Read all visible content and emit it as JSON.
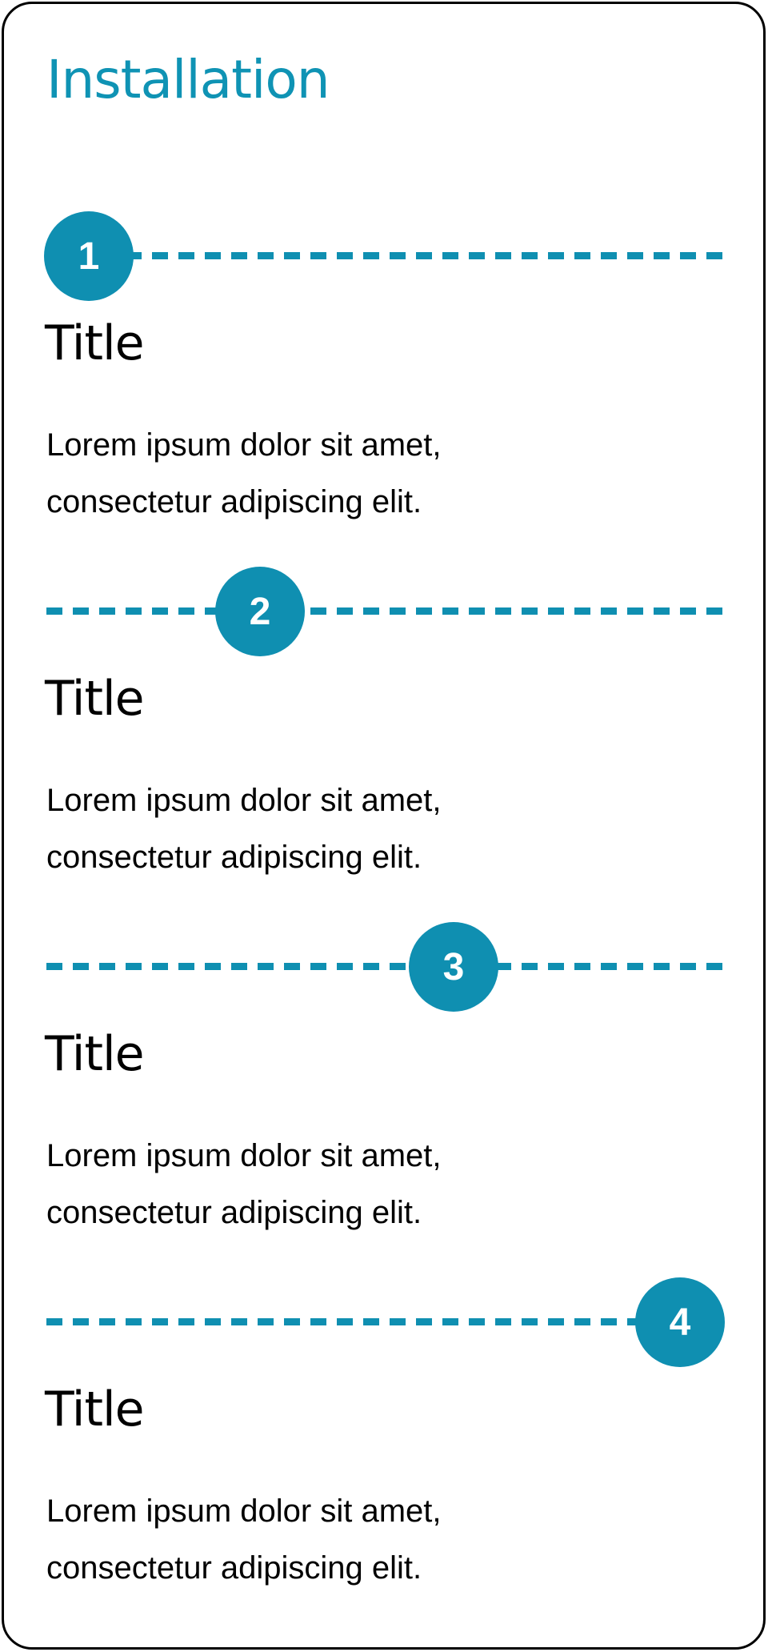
{
  "header": {
    "title": "Installation"
  },
  "colors": {
    "accent": "#0f8fb1",
    "heading": "#0f93b4",
    "text": "#000000",
    "border": "#000000"
  },
  "steps": [
    {
      "number": "1",
      "title": "Title",
      "body": "Lorem ipsum dolor sit amet,\nconsectetur adipiscing elit."
    },
    {
      "number": "2",
      "title": "Title",
      "body": "Lorem ipsum dolor sit amet,\nconsectetur adipiscing elit."
    },
    {
      "number": "3",
      "title": "Title",
      "body": "Lorem ipsum dolor sit amet,\nconsectetur adipiscing elit."
    },
    {
      "number": "4",
      "title": "Title",
      "body": "Lorem ipsum dolor sit amet,\nconsectetur adipiscing elit."
    }
  ]
}
